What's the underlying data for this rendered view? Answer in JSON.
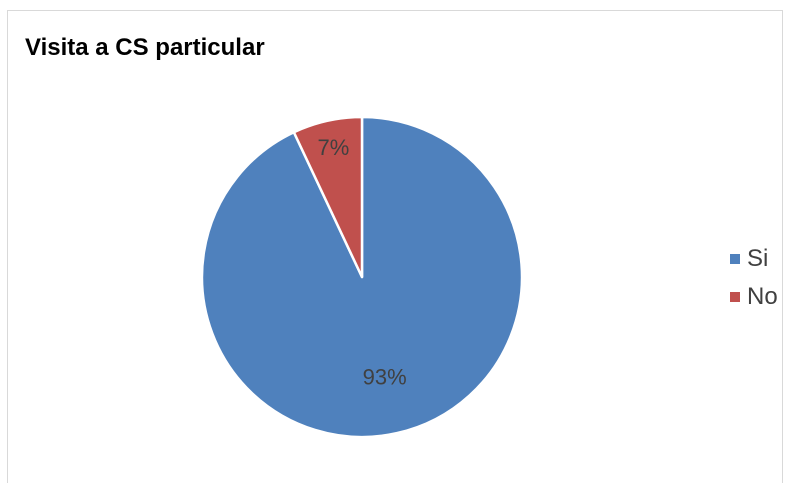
{
  "chart_data": {
    "type": "pie",
    "title": "Visita a CS particular",
    "categories": [
      "Si",
      "No"
    ],
    "values": [
      93,
      7
    ],
    "data_labels": [
      "93%",
      "7%"
    ],
    "colors": [
      "#4f81bd",
      "#c0504d"
    ],
    "legend_position": "right"
  }
}
